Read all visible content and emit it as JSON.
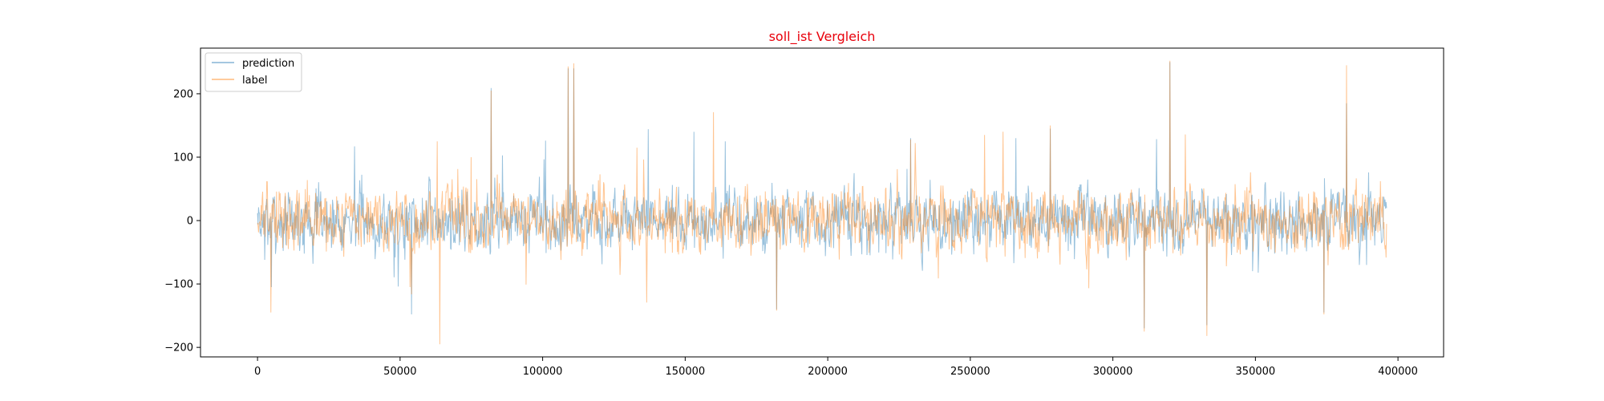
{
  "chart_data": {
    "type": "line",
    "title": "soll_ist Vergleich",
    "title_color": "#e8000b",
    "xlabel": "",
    "ylabel": "",
    "xlim": [
      -20000,
      416000
    ],
    "ylim": [
      -215,
      272
    ],
    "x_ticks": [
      0,
      50000,
      100000,
      150000,
      200000,
      250000,
      300000,
      350000,
      400000
    ],
    "x_tick_labels": [
      "0",
      "50000",
      "100000",
      "150000",
      "200000",
      "250000",
      "300000",
      "350000",
      "400000"
    ],
    "y_ticks": [
      -200,
      -100,
      0,
      100,
      200
    ],
    "y_tick_labels": [
      "−200",
      "−100",
      "0",
      "100",
      "200"
    ],
    "grid": false,
    "legend_position": "top-left",
    "x_range": [
      0,
      396000
    ],
    "noise_amplitude": 22,
    "series": [
      {
        "name": "prediction",
        "color": "#1f77b4",
        "opacity": 0.45,
        "seed": 7,
        "spikes": [
          {
            "x": 4800,
            "y": -105
          },
          {
            "x": 34000,
            "y": 117
          },
          {
            "x": 54000,
            "y": -148
          },
          {
            "x": 82000,
            "y": 209
          },
          {
            "x": 101000,
            "y": 126
          },
          {
            "x": 109000,
            "y": 240
          },
          {
            "x": 111000,
            "y": 240
          },
          {
            "x": 137000,
            "y": 144
          },
          {
            "x": 153000,
            "y": 140
          },
          {
            "x": 164000,
            "y": 125
          },
          {
            "x": 182000,
            "y": -140
          },
          {
            "x": 229000,
            "y": 130
          },
          {
            "x": 266000,
            "y": 130
          },
          {
            "x": 278000,
            "y": 145
          },
          {
            "x": 311000,
            "y": -170
          },
          {
            "x": 320000,
            "y": 250
          },
          {
            "x": 333000,
            "y": -165
          },
          {
            "x": 374000,
            "y": -145
          },
          {
            "x": 382000,
            "y": 185
          },
          {
            "x": 389000,
            "y": -70
          }
        ]
      },
      {
        "name": "label",
        "color": "#ff7f0e",
        "opacity": 0.45,
        "seed": 13,
        "spikes": [
          {
            "x": 4600,
            "y": -145
          },
          {
            "x": 53500,
            "y": -105
          },
          {
            "x": 63000,
            "y": 125
          },
          {
            "x": 64000,
            "y": -195
          },
          {
            "x": 75000,
            "y": 100
          },
          {
            "x": 82000,
            "y": 205
          },
          {
            "x": 109000,
            "y": 243
          },
          {
            "x": 111000,
            "y": 248
          },
          {
            "x": 133000,
            "y": 115
          },
          {
            "x": 160000,
            "y": 171
          },
          {
            "x": 182000,
            "y": -142
          },
          {
            "x": 229000,
            "y": 128
          },
          {
            "x": 255000,
            "y": 135
          },
          {
            "x": 278000,
            "y": 150
          },
          {
            "x": 311000,
            "y": -175
          },
          {
            "x": 320000,
            "y": 252
          },
          {
            "x": 333000,
            "y": -182
          },
          {
            "x": 374000,
            "y": -148
          },
          {
            "x": 382000,
            "y": 245
          }
        ]
      }
    ]
  }
}
